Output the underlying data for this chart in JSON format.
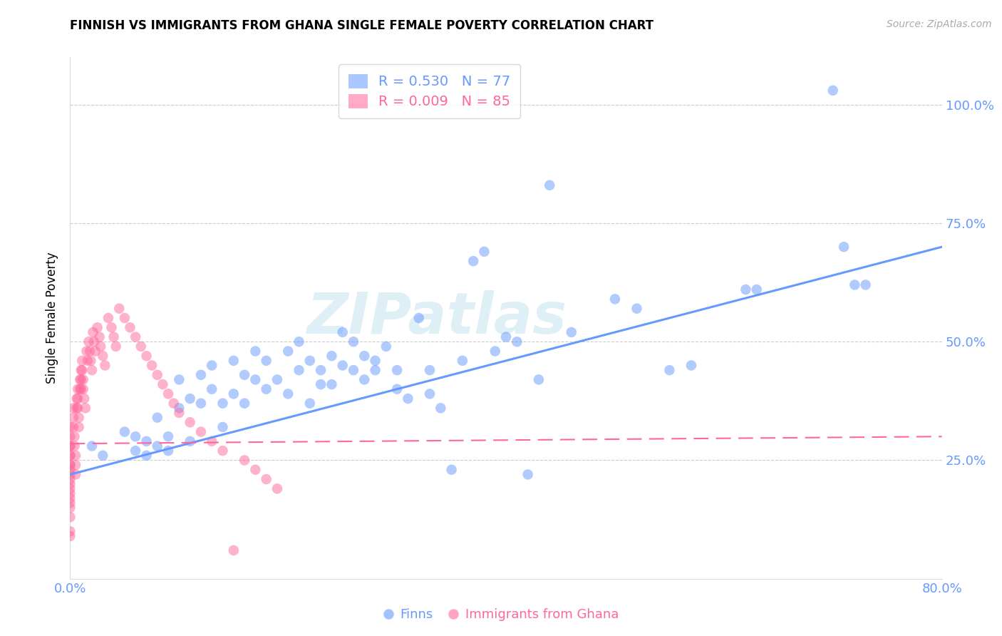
{
  "title": "FINNISH VS IMMIGRANTS FROM GHANA SINGLE FEMALE POVERTY CORRELATION CHART",
  "source": "Source: ZipAtlas.com",
  "ylabel": "Single Female Poverty",
  "ytick_labels": [
    "100.0%",
    "75.0%",
    "50.0%",
    "25.0%"
  ],
  "ytick_values": [
    1.0,
    0.75,
    0.5,
    0.25
  ],
  "xlim": [
    0.0,
    0.8
  ],
  "ylim": [
    0.0,
    1.1
  ],
  "legend_blue_r": "R = 0.530",
  "legend_blue_n": "N = 77",
  "legend_pink_r": "R = 0.009",
  "legend_pink_n": "N = 85",
  "legend_label_blue": "Finns",
  "legend_label_pink": "Immigrants from Ghana",
  "blue_color": "#6699FF",
  "pink_color": "#FF6699",
  "watermark_text": "ZIPatlas",
  "watermark_color": "#add8e6",
  "finns_x": [
    0.02,
    0.03,
    0.05,
    0.06,
    0.06,
    0.07,
    0.07,
    0.08,
    0.08,
    0.09,
    0.09,
    0.1,
    0.1,
    0.11,
    0.11,
    0.12,
    0.12,
    0.13,
    0.13,
    0.14,
    0.14,
    0.15,
    0.15,
    0.16,
    0.16,
    0.17,
    0.17,
    0.18,
    0.18,
    0.19,
    0.2,
    0.2,
    0.21,
    0.21,
    0.22,
    0.22,
    0.23,
    0.23,
    0.24,
    0.24,
    0.25,
    0.25,
    0.26,
    0.26,
    0.27,
    0.27,
    0.28,
    0.28,
    0.29,
    0.3,
    0.3,
    0.31,
    0.32,
    0.33,
    0.33,
    0.34,
    0.35,
    0.36,
    0.37,
    0.38,
    0.39,
    0.4,
    0.41,
    0.42,
    0.43,
    0.44,
    0.46,
    0.5,
    0.52,
    0.55,
    0.57,
    0.62,
    0.63,
    0.7,
    0.71,
    0.72,
    0.73
  ],
  "finns_y": [
    0.28,
    0.26,
    0.31,
    0.3,
    0.27,
    0.29,
    0.26,
    0.34,
    0.28,
    0.3,
    0.27,
    0.42,
    0.36,
    0.38,
    0.29,
    0.43,
    0.37,
    0.45,
    0.4,
    0.37,
    0.32,
    0.46,
    0.39,
    0.43,
    0.37,
    0.48,
    0.42,
    0.46,
    0.4,
    0.42,
    0.48,
    0.39,
    0.5,
    0.44,
    0.46,
    0.37,
    0.44,
    0.41,
    0.47,
    0.41,
    0.52,
    0.45,
    0.5,
    0.44,
    0.47,
    0.42,
    0.46,
    0.44,
    0.49,
    0.44,
    0.4,
    0.38,
    0.55,
    0.44,
    0.39,
    0.36,
    0.23,
    0.46,
    0.67,
    0.69,
    0.48,
    0.51,
    0.5,
    0.22,
    0.42,
    0.83,
    0.52,
    0.59,
    0.57,
    0.44,
    0.45,
    0.61,
    0.61,
    1.03,
    0.7,
    0.62,
    0.62
  ],
  "ghana_x": [
    0.0,
    0.0,
    0.0,
    0.0,
    0.0,
    0.0,
    0.0,
    0.0,
    0.0,
    0.0,
    0.0,
    0.0,
    0.0,
    0.0,
    0.0,
    0.0,
    0.0,
    0.0,
    0.0,
    0.0,
    0.003,
    0.003,
    0.003,
    0.004,
    0.004,
    0.005,
    0.005,
    0.005,
    0.006,
    0.006,
    0.007,
    0.007,
    0.007,
    0.008,
    0.008,
    0.009,
    0.009,
    0.01,
    0.01,
    0.01,
    0.011,
    0.011,
    0.012,
    0.012,
    0.013,
    0.014,
    0.015,
    0.016,
    0.017,
    0.018,
    0.019,
    0.02,
    0.021,
    0.022,
    0.023,
    0.025,
    0.027,
    0.028,
    0.03,
    0.032,
    0.035,
    0.038,
    0.04,
    0.042,
    0.045,
    0.05,
    0.055,
    0.06,
    0.065,
    0.07,
    0.075,
    0.08,
    0.085,
    0.09,
    0.095,
    0.1,
    0.11,
    0.12,
    0.13,
    0.14,
    0.15,
    0.16,
    0.17,
    0.18,
    0.19
  ],
  "ghana_y": [
    0.28,
    0.26,
    0.24,
    0.23,
    0.21,
    0.19,
    0.17,
    0.15,
    0.13,
    0.1,
    0.32,
    0.3,
    0.28,
    0.26,
    0.24,
    0.22,
    0.2,
    0.18,
    0.16,
    0.09,
    0.36,
    0.34,
    0.32,
    0.3,
    0.28,
    0.26,
    0.24,
    0.22,
    0.38,
    0.36,
    0.4,
    0.38,
    0.36,
    0.34,
    0.32,
    0.42,
    0.4,
    0.44,
    0.42,
    0.4,
    0.46,
    0.44,
    0.42,
    0.4,
    0.38,
    0.36,
    0.48,
    0.46,
    0.5,
    0.48,
    0.46,
    0.44,
    0.52,
    0.5,
    0.48,
    0.53,
    0.51,
    0.49,
    0.47,
    0.45,
    0.55,
    0.53,
    0.51,
    0.49,
    0.57,
    0.55,
    0.53,
    0.51,
    0.49,
    0.47,
    0.45,
    0.43,
    0.41,
    0.39,
    0.37,
    0.35,
    0.33,
    0.31,
    0.29,
    0.27,
    0.06,
    0.25,
    0.23,
    0.21,
    0.19
  ],
  "blue_line_x": [
    0.0,
    0.8
  ],
  "blue_line_y_start": 0.22,
  "blue_line_y_end": 0.7,
  "pink_line_x": [
    0.0,
    0.8
  ],
  "pink_line_y_start": 0.285,
  "pink_line_y_end": 0.3
}
